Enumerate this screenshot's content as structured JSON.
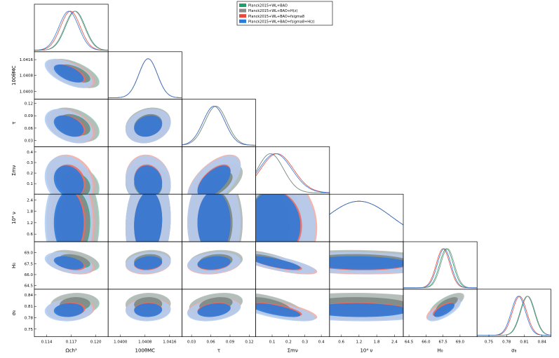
{
  "chart_data": {
    "type": "triangle",
    "title": "",
    "legend": {
      "position": "top-right",
      "entries": [
        {
          "label": "Planck2015+WL+BAO",
          "color": "#1f9e6e"
        },
        {
          "label": "Planck2015+WL+BAO+H(z)",
          "color": "#8c8c8c"
        },
        {
          "label": "Planck2015+WL+BAO+fsigma8",
          "color": "#e8493c"
        },
        {
          "label": "Planck2015+WL+BAO+fsigma8+H(z)",
          "color": "#2b7bdb"
        }
      ]
    },
    "params": [
      {
        "name": "omch2",
        "label": "Ωᴄh²",
        "range": [
          0.1125,
          0.1215
        ],
        "ticks": [
          "0.114",
          "0.117",
          "0.120"
        ],
        "tickvals": [
          0.114,
          0.117,
          0.12
        ]
      },
      {
        "name": "theta",
        "label": "100θMC",
        "range": [
          1.0396,
          1.042
        ],
        "ticks": [
          "1.0400",
          "1.0408",
          "1.0416"
        ],
        "tickvals": [
          1.04,
          1.0408,
          1.0416
        ]
      },
      {
        "name": "tau",
        "label": "τ",
        "range": [
          0.015,
          0.13
        ],
        "ticks": [
          "0.03",
          "0.06",
          "0.09",
          "0.12"
        ],
        "tickvals": [
          0.03,
          0.06,
          0.09,
          0.12
        ]
      },
      {
        "name": "mnu",
        "label": "Σmν",
        "range": [
          0.0,
          0.45
        ],
        "ticks": [
          "0.1",
          "0.2",
          "0.3",
          "0.4"
        ],
        "tickvals": [
          0.1,
          0.2,
          0.3,
          0.4
        ]
      },
      {
        "name": "nu",
        "label": "10⁴ ν",
        "range": [
          0.2,
          2.7
        ],
        "ticks": [
          "0.6",
          "1.2",
          "1.8",
          "2.4"
        ],
        "tickvals": [
          0.6,
          1.2,
          1.8,
          2.4
        ]
      },
      {
        "name": "H0",
        "label": "H₀",
        "range": [
          64.0,
          70.5
        ],
        "ticks": [
          "64.5",
          "66.0",
          "67.5",
          "69.0"
        ],
        "tickvals": [
          64.5,
          66,
          67.5,
          69
        ]
      },
      {
        "name": "sigma8",
        "label": "σ₈",
        "range": [
          0.73,
          0.855
        ],
        "ticks": [
          "0.75",
          "0.78",
          "0.81",
          "0.84"
        ],
        "tickvals": [
          0.75,
          0.78,
          0.81,
          0.84
        ]
      }
    ],
    "series": [
      {
        "name": "Planck2015+WL+BAO",
        "mean": [
          0.1175,
          1.0409,
          0.068,
          0.09,
          1.2,
          67.8,
          0.815
        ],
        "sigma": [
          0.0012,
          0.0003,
          0.017,
          0.08,
          1.1,
          0.6,
          0.012
        ]
      },
      {
        "name": "Planck2015+WL+BAO+H(z)",
        "mean": [
          0.1174,
          1.0409,
          0.068,
          0.09,
          1.2,
          67.9,
          0.816
        ],
        "sigma": [
          0.0012,
          0.0003,
          0.017,
          0.08,
          1.1,
          0.6,
          0.012
        ]
      },
      {
        "name": "Planck2015+WL+BAO+fsigma8",
        "mean": [
          0.1169,
          1.0409,
          0.065,
          0.13,
          1.2,
          67.5,
          0.802
        ],
        "sigma": [
          0.0012,
          0.0003,
          0.017,
          0.1,
          1.1,
          0.6,
          0.012
        ]
      },
      {
        "name": "Planck2015+WL+BAO+fsigma8+H(z)",
        "mean": [
          0.1167,
          1.0409,
          0.065,
          0.12,
          1.2,
          67.6,
          0.8
        ],
        "sigma": [
          0.0012,
          0.0003,
          0.017,
          0.1,
          1.1,
          0.6,
          0.012
        ]
      }
    ]
  }
}
